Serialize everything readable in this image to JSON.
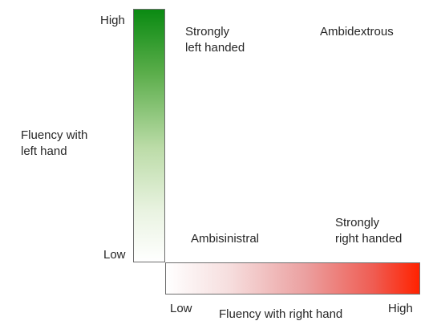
{
  "vertical_axis": {
    "label_line1": "Fluency with",
    "label_line2": "left hand",
    "high": "High",
    "low": "Low",
    "gradient_colors": {
      "top": "#0a8a12",
      "bottom": "#ffffff"
    }
  },
  "horizontal_axis": {
    "label": "Fluency with right hand",
    "low": "Low",
    "high": "High",
    "gradient_colors": {
      "left": "#ffffff",
      "right": "#ff2200"
    }
  },
  "quadrants": {
    "top_left_line1": "Strongly",
    "top_left_line2": "left handed",
    "top_right": "Ambidextrous",
    "bottom_left": "Ambisinistral",
    "bottom_right_line1": "Strongly",
    "bottom_right_line2": "right handed"
  }
}
